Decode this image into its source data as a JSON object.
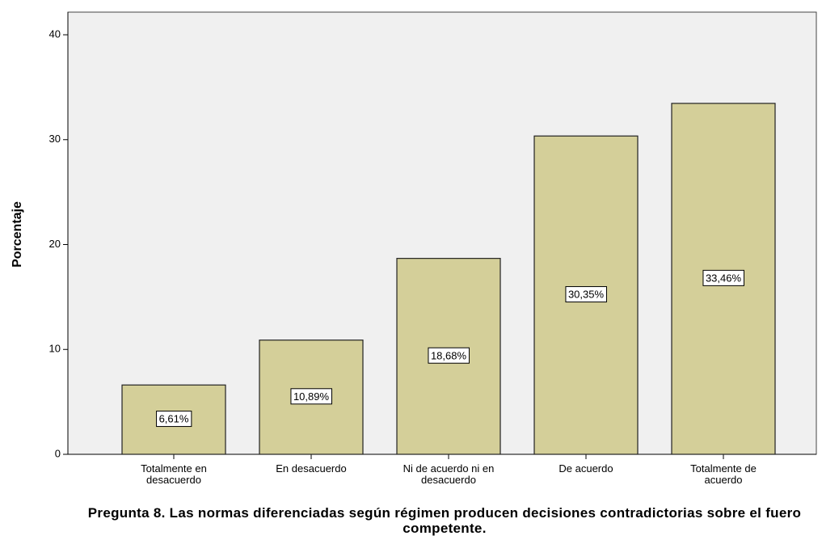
{
  "chart_data": {
    "type": "bar",
    "title": "Pregunta 8. Las normas diferenciadas según régimen producen decisiones contradictorias sobre el fuero competente.",
    "ylabel": "Porcentaje",
    "categories": [
      "Totalmente en desacuerdo",
      "En desacuerdo",
      "Ni de acuerdo ni en desacuerdo",
      "De acuerdo",
      "Totalmente de acuerdo"
    ],
    "values": [
      6.61,
      10.89,
      18.68,
      30.35,
      33.46
    ],
    "value_labels": [
      "6,61%",
      "10,89%",
      "18,68%",
      "30,35%",
      "33,46%"
    ],
    "color": "#d4cf99",
    "ylim": [
      0,
      42.16
    ],
    "yticks": [
      0,
      10,
      20,
      30,
      40
    ],
    "grid": false
  }
}
